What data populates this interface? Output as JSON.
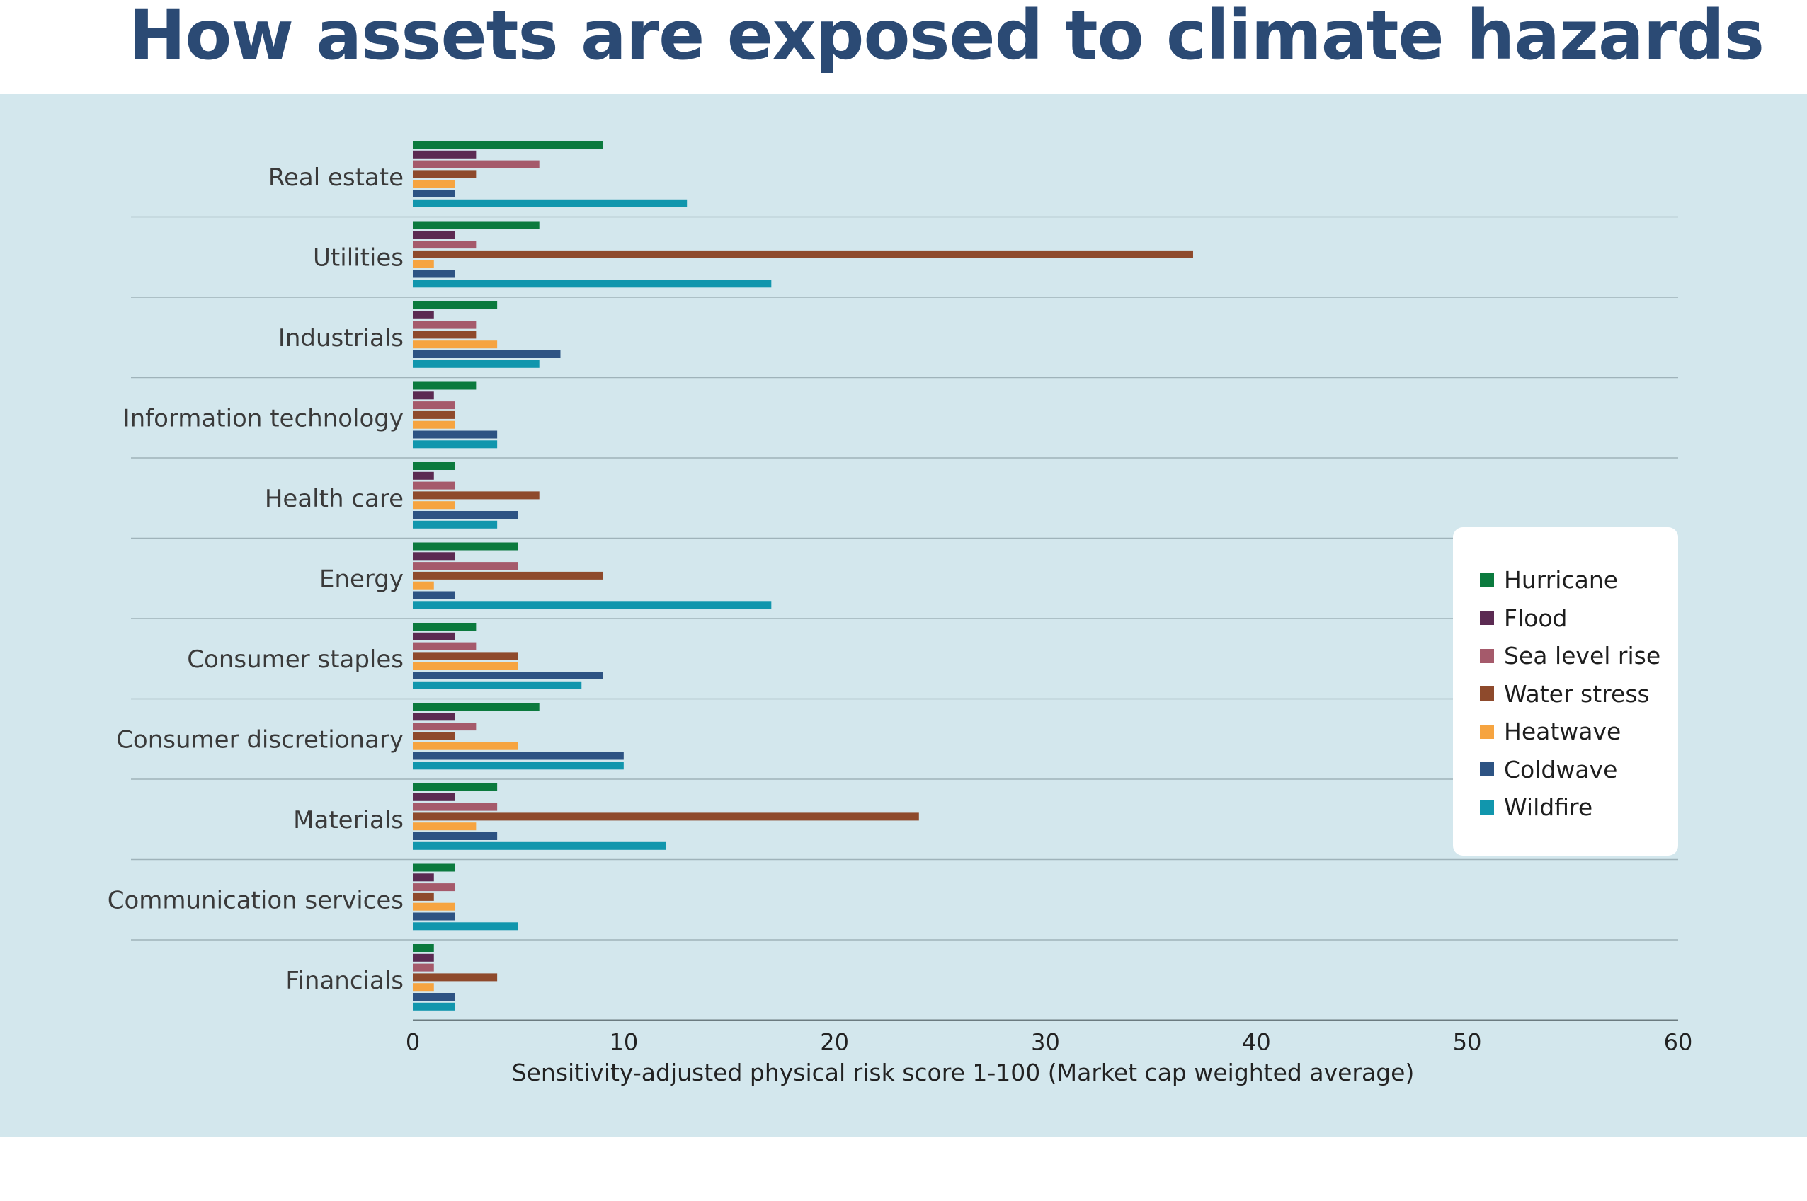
{
  "header": {
    "title": "How assets are exposed to climate hazards"
  },
  "chart_data": {
    "type": "bar",
    "orientation": "horizontal",
    "title": "How assets are exposed to climate hazards",
    "xlabel": "Sensitivity-adjusted physical risk score 1-100 (Market cap weighted average)",
    "ylabel": "",
    "xlim": [
      0,
      60
    ],
    "xticks": [
      0,
      10,
      20,
      30,
      40,
      50,
      60
    ],
    "categories": [
      "Real estate",
      "Utilities",
      "Industrials",
      "Information technology",
      "Health care",
      "Energy",
      "Consumer staples",
      "Consumer discretionary",
      "Materials",
      "Communication services",
      "Financials"
    ],
    "series": [
      {
        "name": "Hurricane",
        "color": "#0b7a3e",
        "values": [
          9,
          6,
          4,
          3,
          2,
          5,
          3,
          6,
          4,
          2,
          1
        ]
      },
      {
        "name": "Flood",
        "color": "#5b2a52",
        "values": [
          3,
          2,
          1,
          1,
          1,
          2,
          2,
          2,
          2,
          1,
          1
        ]
      },
      {
        "name": "Sea level rise",
        "color": "#a55a6b",
        "values": [
          6,
          3,
          3,
          2,
          2,
          5,
          3,
          3,
          4,
          2,
          1
        ]
      },
      {
        "name": "Water stress",
        "color": "#8e4a2c",
        "values": [
          3,
          37,
          3,
          2,
          6,
          9,
          5,
          2,
          24,
          1,
          4
        ]
      },
      {
        "name": "Heatwave",
        "color": "#f6a440",
        "values": [
          2,
          1,
          4,
          2,
          2,
          1,
          5,
          5,
          3,
          2,
          1
        ]
      },
      {
        "name": "Coldwave",
        "color": "#2d5383",
        "values": [
          2,
          2,
          7,
          4,
          5,
          2,
          9,
          10,
          4,
          2,
          2
        ]
      },
      {
        "name": "Wildfire",
        "color": "#1196ad",
        "values": [
          13,
          17,
          6,
          4,
          4,
          17,
          8,
          10,
          12,
          5,
          2
        ]
      }
    ],
    "grid": false,
    "legend_position": "right"
  }
}
